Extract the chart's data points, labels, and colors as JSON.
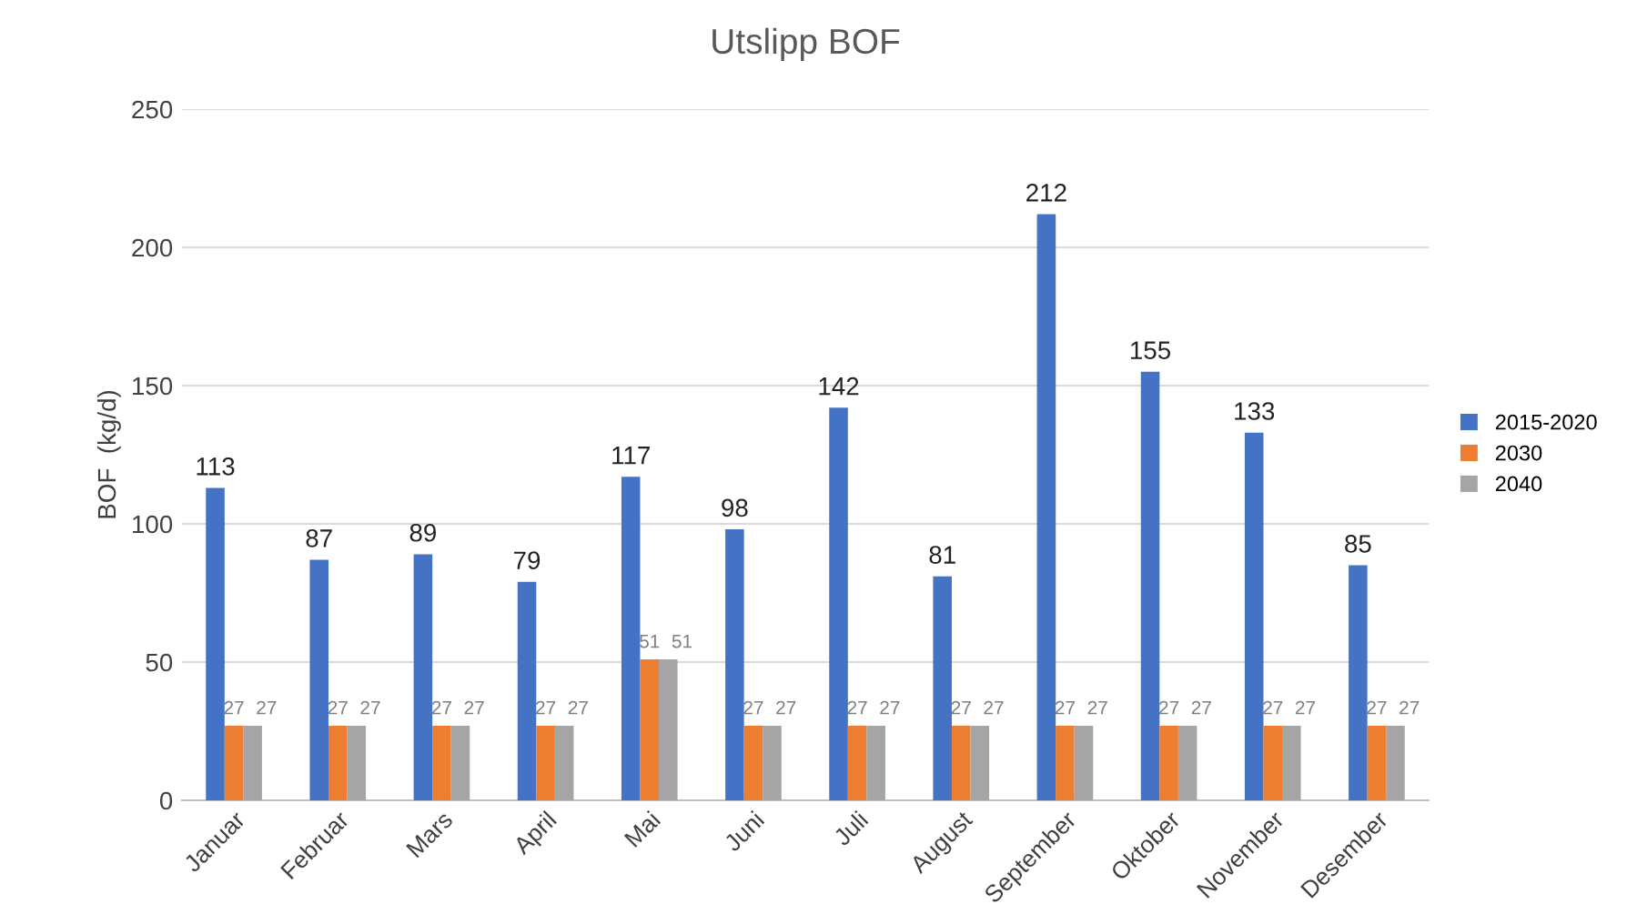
{
  "chart_data": {
    "type": "bar",
    "title": "Utslipp BOF",
    "ylabel": "BOF  (kg/d)",
    "categories": [
      "Januar",
      "Februar",
      "Mars",
      "April",
      "Mai",
      "Juni",
      "Juli",
      "August",
      "September",
      "Oktober",
      "November",
      "Desember"
    ],
    "series": [
      {
        "name": "2015-2020",
        "color": "#4472c4",
        "values": [
          113,
          87,
          89,
          79,
          117,
          98,
          142,
          81,
          212,
          155,
          133,
          85
        ]
      },
      {
        "name": "2030",
        "color": "#ed7d31",
        "values": [
          27,
          27,
          27,
          27,
          51,
          27,
          27,
          27,
          27,
          27,
          27,
          27
        ]
      },
      {
        "name": "2040",
        "color": "#a5a5a5",
        "values": [
          27,
          27,
          27,
          27,
          51,
          27,
          27,
          27,
          27,
          27,
          27,
          27
        ]
      }
    ],
    "ylim": [
      0,
      250
    ],
    "yticks": [
      0,
      50,
      100,
      150,
      200,
      250
    ],
    "grid": "y",
    "legend": "right",
    "data_labels": true
  }
}
